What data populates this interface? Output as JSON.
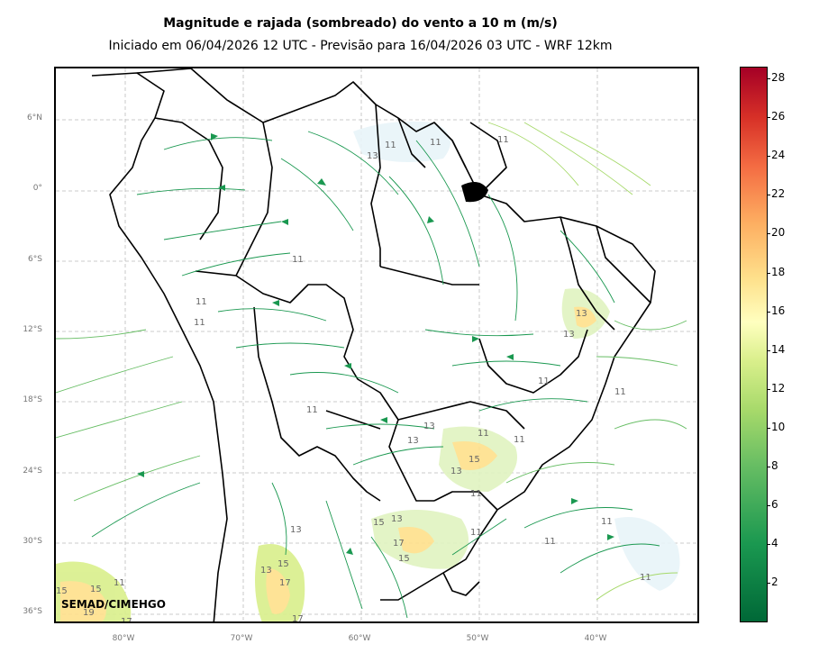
{
  "title": "Magnitude e rajada (sombreado) do vento a 10 m (m/s)",
  "subtitle": "Iniciado em 06/04/2026 12 UTC - Previsão para 16/04/2026 03 UTC - WRF 12km",
  "credit": "SEMAD/CIMEHGO",
  "lat_labels": [
    "6°N",
    "0°",
    "6°S",
    "12°S",
    "18°S",
    "24°S",
    "30°S",
    "36°S"
  ],
  "lon_labels": [
    "80°W",
    "70°W",
    "60°W",
    "50°W",
    "40°W"
  ],
  "colorbar": {
    "ticks": [
      "2",
      "4",
      "6",
      "8",
      "10",
      "12",
      "14",
      "16",
      "18",
      "20",
      "22",
      "24",
      "26",
      "28"
    ],
    "colors": [
      "#006837",
      "#1a9850",
      "#66bd63",
      "#a6d96a",
      "#d9ef8b",
      "#ffffbf",
      "#fee08b",
      "#fdae61",
      "#f46d43",
      "#d73027",
      "#a50026"
    ]
  },
  "contour_labels": [
    "11",
    "13",
    "15",
    "17",
    "19"
  ]
}
